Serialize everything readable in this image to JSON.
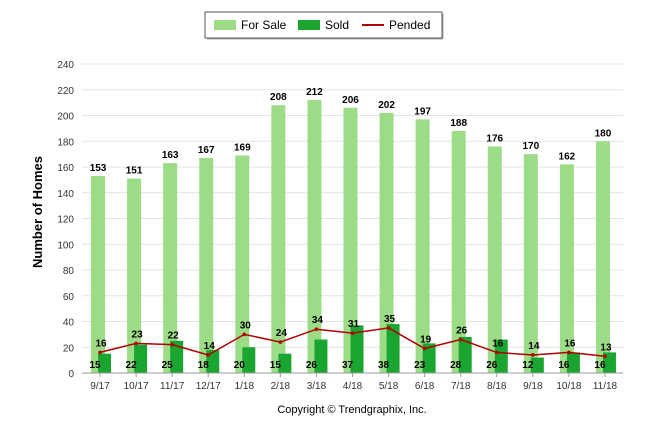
{
  "chart_data": {
    "type": "bar",
    "categories": [
      "9/17",
      "10/17",
      "11/17",
      "12/17",
      "1/18",
      "2/18",
      "3/18",
      "4/18",
      "5/18",
      "6/18",
      "7/18",
      "8/18",
      "9/18",
      "10/18",
      "11/18"
    ],
    "series": [
      {
        "name": "For Sale",
        "type": "bar",
        "color": "#9ddc86",
        "values": [
          153,
          151,
          163,
          167,
          169,
          208,
          212,
          206,
          202,
          197,
          188,
          176,
          170,
          162,
          180
        ]
      },
      {
        "name": "Sold",
        "type": "bar",
        "color": "#1aa530",
        "values": [
          15,
          22,
          25,
          18,
          20,
          15,
          26,
          37,
          38,
          23,
          28,
          26,
          12,
          16,
          16
        ]
      },
      {
        "name": "Pended",
        "type": "line",
        "color": "#b00000",
        "values": [
          16,
          23,
          22,
          14,
          30,
          24,
          34,
          31,
          35,
          19,
          26,
          16,
          14,
          16,
          13
        ]
      }
    ],
    "ylabel": "Number of Homes",
    "xlabel": "",
    "title": "",
    "ylim": [
      0,
      240
    ],
    "yticks": [
      0,
      20,
      40,
      60,
      80,
      100,
      120,
      140,
      160,
      180,
      200,
      220,
      240
    ],
    "grid": true,
    "legend_position": "top-center"
  },
  "footer": {
    "copyright": "Copyright © Trendgraphix, Inc."
  }
}
